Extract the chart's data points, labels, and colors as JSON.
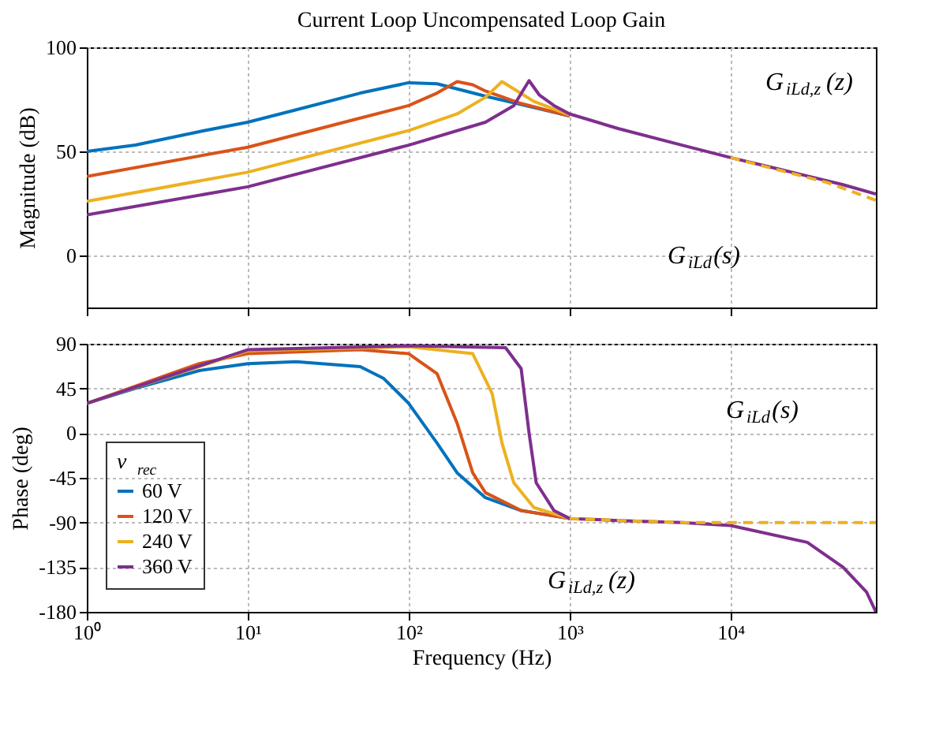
{
  "chart_data": [
    {
      "type": "line",
      "title": "Current Loop Uncompensated Loop Gain",
      "ylabel": "Magnitude (dB)",
      "log": "x",
      "grid": true,
      "legend": false,
      "tick_labels": "y",
      "xlim": [
        1,
        80000
      ],
      "xticks": [
        {
          "value": 1,
          "label": null
        },
        {
          "value": 10,
          "label": null
        },
        {
          "value": 100,
          "label": null
        },
        {
          "value": 1000,
          "label": null
        },
        {
          "value": 10000,
          "label": null
        }
      ],
      "ylim": [
        -25,
        100
      ],
      "yticks": [
        0,
        50,
        100
      ],
      "series": [
        {
          "color": "#0072bd",
          "x": [
            1,
            2,
            5,
            10,
            20,
            50,
            100,
            150,
            200,
            300,
            500,
            1000
          ],
          "values": [
            50,
            53,
            59.5,
            64,
            70,
            78,
            83,
            82.5,
            80,
            76.5,
            72.5,
            67
          ]
        },
        {
          "color": "#d95319",
          "x": [
            1,
            10,
            50,
            100,
            150,
            200,
            250,
            300,
            500,
            1000
          ],
          "values": [
            38,
            52,
            66,
            72,
            78,
            83.5,
            82,
            79,
            73,
            67
          ]
        },
        {
          "color": "#edb120",
          "x": [
            1,
            10,
            100,
            200,
            300,
            380,
            450,
            600,
            1000
          ],
          "values": [
            26,
            40,
            60,
            68,
            76,
            83.5,
            80,
            74,
            67.5
          ]
        },
        {
          "color": "#7e2f8e",
          "x": [
            1,
            10,
            100,
            300,
            450,
            560,
            650,
            800,
            1000,
            2000,
            5000,
            10000,
            20000,
            50000,
            80000
          ],
          "values": [
            19.5,
            33,
            53,
            64,
            72,
            84,
            77,
            72,
            68,
            61,
            53,
            47,
            41.5,
            34,
            29.5
          ]
        },
        {
          "color": "#edb120",
          "line_style": "dashed",
          "x": [
            10000,
            20000,
            40000,
            80000
          ],
          "values": [
            47,
            41,
            35,
            26.5
          ]
        }
      ],
      "annotations": [
        "G$_{iLd,z}$(z)",
        "G$_{iLd}$(s)"
      ]
    },
    {
      "type": "line",
      "xlabel": "Frequency (Hz)",
      "ylabel": "Phase (deg)",
      "log": "x",
      "grid": true,
      "legend": "bottom left",
      "legend_title": "v$_{rec}$",
      "xlim": [
        1,
        80000
      ],
      "xticks": [
        {
          "value": 1,
          "label": "10⁰"
        },
        {
          "value": 10,
          "label": "10¹"
        },
        {
          "value": 100,
          "label": "10²"
        },
        {
          "value": 1000,
          "label": "10³"
        },
        {
          "value": 10000,
          "label": "10⁴"
        }
      ],
      "ylim": [
        -180,
        90
      ],
      "yticks": [
        -180,
        -135,
        -90,
        -45,
        0,
        45,
        90
      ],
      "series": [
        {
          "name": "60 V",
          "color": "#0072bd",
          "x": [
            1,
            2,
            5,
            10,
            20,
            50,
            70,
            100,
            150,
            200,
            300,
            500,
            1000
          ],
          "values": [
            30,
            45,
            63,
            70,
            72,
            67,
            55,
            30,
            -10,
            -40,
            -65,
            -78,
            -86
          ]
        },
        {
          "name": "120 V",
          "color": "#d95319",
          "x": [
            1,
            5,
            10,
            50,
            100,
            150,
            200,
            250,
            300,
            500,
            1000
          ],
          "values": [
            30,
            70,
            80,
            84,
            80,
            60,
            10,
            -40,
            -60,
            -78,
            -86
          ]
        },
        {
          "name": "240 V",
          "color": "#edb120",
          "x": [
            1,
            10,
            100,
            250,
            330,
            380,
            450,
            600,
            1000
          ],
          "values": [
            30,
            83,
            87,
            80,
            40,
            -10,
            -50,
            -75,
            -86
          ]
        },
        {
          "name": "360 V",
          "color": "#7e2f8e",
          "x": [
            1,
            10,
            100,
            400,
            500,
            560,
            620,
            800,
            1000,
            2000,
            5000,
            10000,
            30000,
            50000,
            70000,
            80000
          ],
          "values": [
            30,
            84,
            88,
            86,
            65,
            0,
            -50,
            -78,
            -86,
            -88,
            -90,
            -93,
            -110,
            -135,
            -160,
            -180
          ]
        },
        {
          "color": "#edb120",
          "line_style": "dashed",
          "x": [
            1000,
            2000,
            5000,
            10000,
            80000
          ],
          "values": [
            -86,
            -88,
            -90,
            -90,
            -90
          ]
        }
      ],
      "annotations": [
        "G$_{iLd}$(s)",
        "G$_{iLd,z}$(z)"
      ]
    }
  ]
}
